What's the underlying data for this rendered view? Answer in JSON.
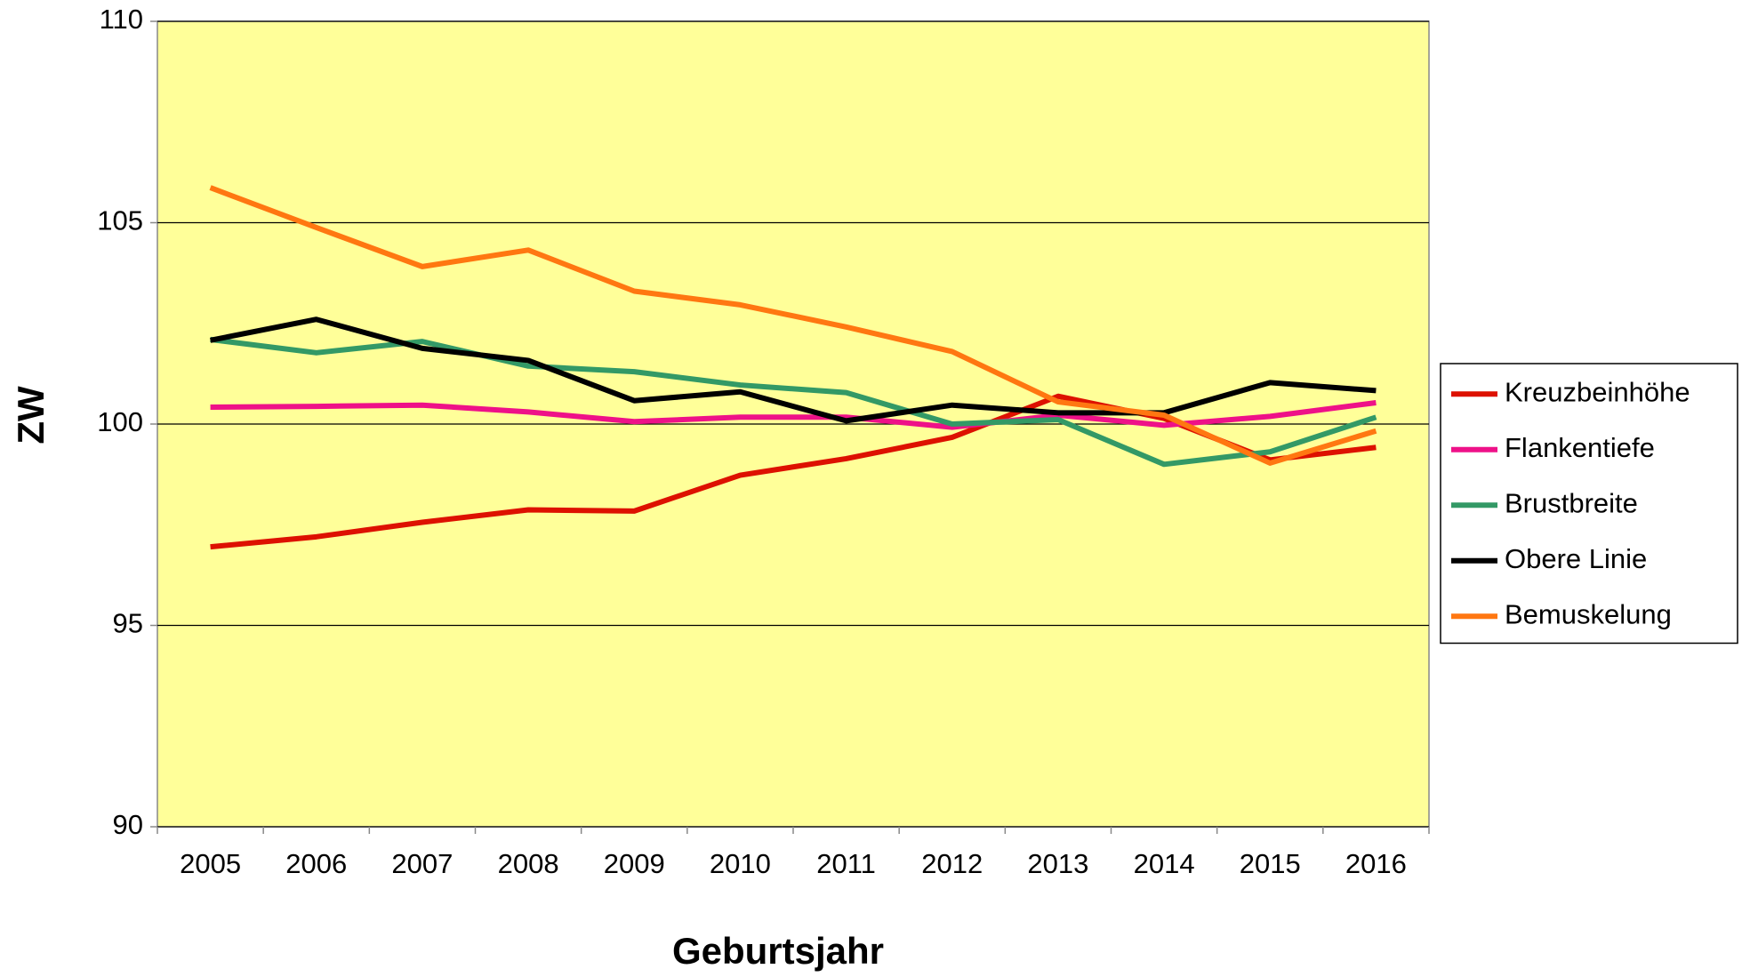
{
  "chart_data": {
    "type": "line",
    "x_label": "Geburtsjahr",
    "y_label": "ZW",
    "categories": [
      "2005",
      "2006",
      "2007",
      "2008",
      "2009",
      "2010",
      "2011",
      "2012",
      "2013",
      "2014",
      "2015",
      "2016"
    ],
    "series": [
      {
        "name": "Kreuzbeinhöhe",
        "color": "#dd1100",
        "values": [
          96.95,
          97.2,
          97.56,
          97.87,
          97.84,
          98.73,
          99.14,
          99.67,
          100.69,
          100.14,
          99.11,
          99.42
        ]
      },
      {
        "name": "Flankentiefe",
        "color": "#ee1188",
        "values": [
          100.42,
          100.44,
          100.47,
          100.3,
          100.06,
          100.17,
          100.17,
          99.92,
          100.22,
          99.97,
          100.19,
          100.53
        ]
      },
      {
        "name": "Brustbreite",
        "color": "#339966",
        "values": [
          102.1,
          101.77,
          102.05,
          101.44,
          101.3,
          100.97,
          100.78,
          100.0,
          100.11,
          99.0,
          99.31,
          100.17
        ]
      },
      {
        "name": "Obere Linie",
        "color": "#000000",
        "values": [
          102.08,
          102.6,
          101.88,
          101.58,
          100.58,
          100.8,
          100.08,
          100.47,
          100.28,
          100.28,
          101.03,
          100.83
        ]
      },
      {
        "name": "Bemuskelung",
        "color": "#ff7711",
        "values": [
          105.87,
          104.88,
          103.91,
          104.32,
          103.3,
          102.96,
          102.41,
          101.8,
          100.55,
          100.22,
          99.03,
          99.83
        ]
      }
    ],
    "ylim": [
      90,
      110
    ],
    "yticks": [
      90,
      95,
      100,
      105,
      110
    ],
    "grid": true,
    "legend": "right",
    "background": "#ffff99"
  }
}
